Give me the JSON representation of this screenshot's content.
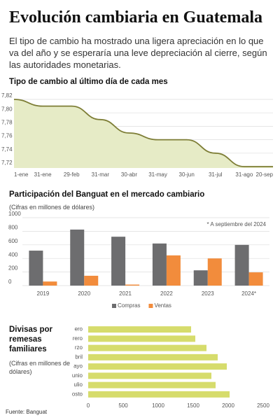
{
  "header": {
    "title": "Evolución cambiaria en Guatemala",
    "subtitle": "El tipo de cambio ha mostrado una ligera apreciación en lo que va del año y se esperaría una leve depreciación al cierre, según las autoridades monetarias."
  },
  "chart_data": [
    {
      "type": "area",
      "title": "Tipo de cambio al último día de cada mes",
      "categories": [
        "1-ene",
        "31-ene",
        "29-feb",
        "31-mar",
        "30-abr",
        "31-may",
        "30-jun",
        "31-jul",
        "31-ago",
        "20-sep"
      ],
      "values": [
        7.82,
        7.81,
        7.81,
        7.79,
        7.77,
        7.76,
        7.76,
        7.74,
        7.72,
        7.72
      ],
      "color": "#7d7d35",
      "fill": "#e6ebc6",
      "ylim": [
        7.72,
        7.82
      ],
      "yticks": [
        {
          "value": 7.82,
          "label": "7,82"
        },
        {
          "value": 7.8,
          "label": "7,80"
        },
        {
          "value": 7.78,
          "label": "7,78"
        },
        {
          "value": 7.76,
          "label": "7,76"
        },
        {
          "value": 7.74,
          "label": "7,74"
        },
        {
          "value": 7.72,
          "label": "7,72"
        }
      ],
      "grid": true
    },
    {
      "type": "bar",
      "title": "Participación del Banguat en el mercado cambiario",
      "subtitle": "(Cifras en millones de dólares)",
      "annotation": "* A septiembre del 2024",
      "categories": [
        "2019",
        "2020",
        "2021",
        "2022",
        "2023",
        "2024*"
      ],
      "series": [
        {
          "name": "Compras",
          "color": "#6d6d6f",
          "values": [
            515,
            825,
            720,
            620,
            225,
            600
          ]
        },
        {
          "name": "Ventas",
          "color": "#f28c3c",
          "values": [
            60,
            145,
            15,
            445,
            400,
            195
          ]
        }
      ],
      "ylim": [
        0,
        1000
      ],
      "yticks": [
        0,
        200,
        400,
        600,
        800,
        1000
      ],
      "grid": true,
      "legend": "bottom"
    },
    {
      "type": "hbar",
      "title": "Divisas por remesas familiares",
      "subtitle": "(Cifras en millones de dólares)",
      "categories": [
        "ero",
        "rero",
        "rzo",
        "bril",
        "ayo",
        "unio",
        "ulio",
        "osto"
      ],
      "values": [
        1470,
        1530,
        1690,
        1850,
        1980,
        1760,
        1820,
        2020
      ],
      "color": "#d6dc6c",
      "xlim": [
        0,
        2500
      ],
      "xticks": [
        0,
        500,
        1000,
        1500,
        2000,
        2500
      ],
      "grid": false
    }
  ],
  "footer": {
    "source": "Fuente: Banguat"
  }
}
